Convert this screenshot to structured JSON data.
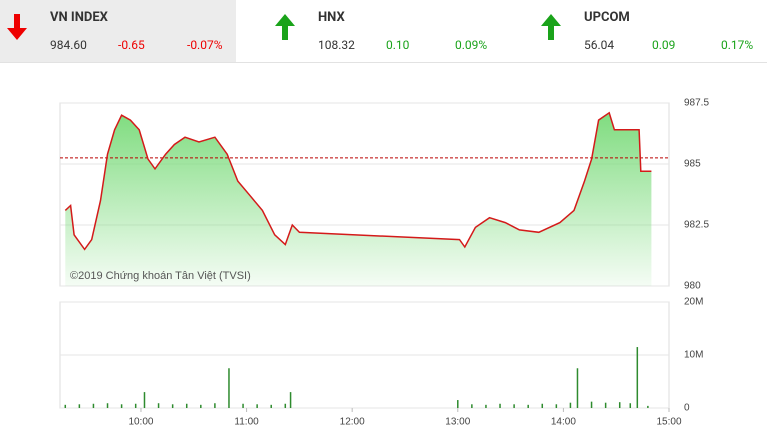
{
  "indices": [
    {
      "name": "VN INDEX",
      "value": "984.60",
      "change": "-0.65",
      "percent": "-0.07%"
    },
    {
      "name": "HNX",
      "value": "108.32",
      "change": "0.10",
      "percent": "0.09%"
    },
    {
      "name": "UPCOM",
      "value": "56.04",
      "change": "0.09",
      "percent": "0.17%"
    }
  ],
  "chart_data": [
    {
      "type": "line",
      "annotation": "©2019 Chứng khoán Tân Việt (TVSI)",
      "reference": 985.25,
      "x": [
        557,
        560,
        562,
        568,
        572,
        577,
        581,
        585,
        589,
        594,
        599,
        604,
        608,
        614,
        619,
        625,
        633,
        642,
        649,
        655,
        662,
        669,
        676,
        682,
        686,
        690,
        781,
        784,
        790,
        798,
        807,
        815,
        826,
        838,
        846,
        852,
        856,
        860,
        866,
        869,
        883,
        884,
        890
      ],
      "values": [
        983.1,
        983.3,
        982.1,
        981.5,
        981.9,
        983.5,
        985.4,
        986.4,
        987.0,
        986.8,
        986.4,
        985.2,
        984.8,
        985.4,
        985.8,
        986.1,
        985.9,
        986.1,
        985.4,
        984.3,
        983.7,
        983.1,
        982.1,
        981.7,
        982.5,
        982.2,
        981.9,
        981.6,
        982.4,
        982.8,
        982.6,
        982.3,
        982.2,
        982.6,
        983.1,
        984.3,
        985.2,
        986.8,
        987.1,
        986.4,
        986.4,
        984.7,
        984.7
      ],
      "color": "#d41a1a",
      "fill": "#7fdc7f",
      "xlim": [
        554,
        900
      ],
      "ylim": [
        980,
        987.5
      ],
      "yticks": [
        980,
        982.5,
        985,
        987.5
      ],
      "grid": true
    },
    {
      "type": "bar",
      "x": [
        557,
        565,
        573,
        581,
        589,
        597,
        602,
        610,
        618,
        626,
        634,
        642,
        650,
        658,
        666,
        674,
        682,
        685,
        780,
        788,
        796,
        804,
        812,
        820,
        828,
        836,
        844,
        848,
        856,
        864,
        872,
        878,
        882,
        888
      ],
      "values": [
        600000,
        700000,
        800000,
        900000,
        700000,
        800000,
        3000000,
        900000,
        700000,
        800000,
        600000,
        900000,
        7500000,
        800000,
        700000,
        600000,
        800000,
        3000000,
        1500000,
        700000,
        600000,
        800000,
        700000,
        600000,
        800000,
        700000,
        1000000,
        7500000,
        1200000,
        1000000,
        1100000,
        900000,
        11500000,
        400000
      ],
      "color": "#2e8b2e",
      "xlim": [
        554,
        900
      ],
      "xticks": [
        {
          "value": 600,
          "label": "10:00"
        },
        {
          "value": 660,
          "label": "11:00"
        },
        {
          "value": 720,
          "label": "12:00"
        },
        {
          "value": 780,
          "label": "13:00"
        },
        {
          "value": 840,
          "label": "14:00"
        },
        {
          "value": 900,
          "label": "15:00"
        }
      ],
      "ylim": [
        0,
        20000000
      ],
      "yticks": [
        {
          "value": 0,
          "label": "0"
        },
        {
          "value": 10000000,
          "label": "10M"
        },
        {
          "value": 20000000,
          "label": "20M"
        }
      ],
      "grid": true
    }
  ]
}
